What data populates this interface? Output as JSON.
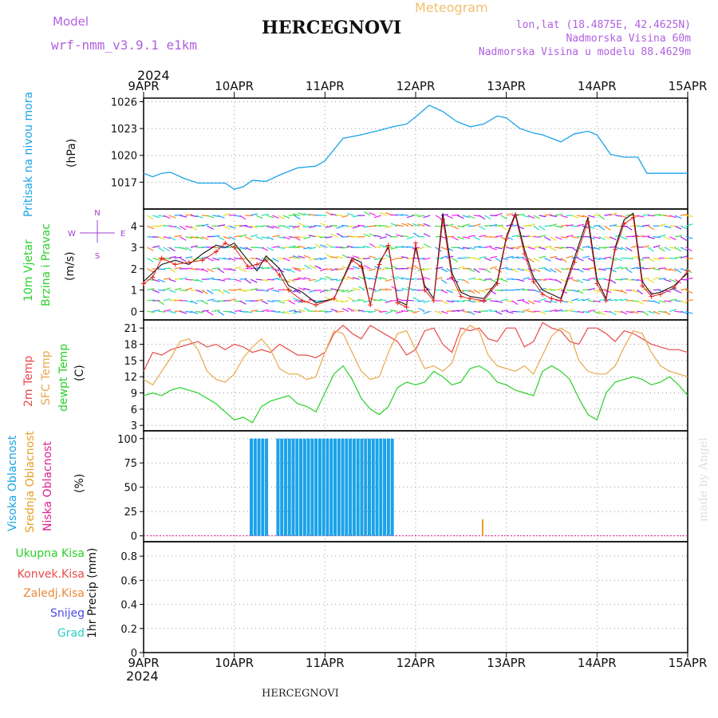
{
  "header": {
    "model_label": "Model",
    "model_name": "wrf-nmm_v3.9.1 e1km",
    "station": "HERCEGNOVI",
    "chart_kind": "Meteogram",
    "lonlat": "lon,lat (18.4875E, 42.4625N)",
    "altitude": "Nadmorska Visina 60m",
    "model_altitude": "Nadmorska Visina u modelu 88.4629m",
    "credit": "made by Angel",
    "footer_station": "HERCEGNOVI"
  },
  "colors": {
    "pressure": "#1aa3e8",
    "temp2m": "#e84a4a",
    "sfc": "#e8a84a",
    "dewpt": "#2ad02a",
    "wind_obs": "#e02020",
    "purple": "#a040d0",
    "cloud_high": "#1aa3e8",
    "cloud_mid": "#e8a020",
    "cloud_low": "#e02090",
    "grid": "#999999"
  },
  "chart_data": [
    {
      "type": "line",
      "panel": "pressure",
      "ylabel_lines": [
        "Pritisak na nivou mora",
        "(hPa)"
      ],
      "yticks": [
        1017,
        1020,
        1023,
        1026
      ],
      "ylim": [
        1014,
        1026.4
      ],
      "x_days": [
        0,
        0.1,
        0.2,
        0.3,
        0.45,
        0.6,
        0.75,
        0.9,
        1.0,
        1.1,
        1.2,
        1.35,
        1.5,
        1.7,
        1.9,
        2.0,
        2.2,
        2.4,
        2.6,
        2.75,
        2.9,
        3.0,
        3.15,
        3.3,
        3.45,
        3.6,
        3.75,
        3.9,
        4.0,
        4.15,
        4.3,
        4.4,
        4.5,
        4.6,
        4.75,
        4.9,
        5.0,
        5.15,
        5.3,
        5.45,
        5.55,
        5.7,
        5.85,
        6.0
      ],
      "values": [
        1018.0,
        1017.6,
        1018.0,
        1018.1,
        1017.4,
        1016.9,
        1016.9,
        1016.9,
        1016.2,
        1016.5,
        1017.2,
        1017.1,
        1017.8,
        1018.6,
        1018.8,
        1019.4,
        1021.9,
        1022.3,
        1022.8,
        1023.2,
        1023.5,
        1024.3,
        1025.6,
        1024.9,
        1023.8,
        1023.2,
        1023.5,
        1024.4,
        1024.2,
        1023.0,
        1022.5,
        1022.3,
        1021.9,
        1021.5,
        1022.4,
        1022.7,
        1022.3,
        1020.1,
        1019.8,
        1019.8,
        1018.0,
        1018.0,
        1018.0,
        1018.0
      ]
    },
    {
      "type": "line",
      "panel": "wind",
      "ylabel_lines": [
        "10m Vjetar",
        "Brzina i Pravac",
        "(m/s)"
      ],
      "compass": [
        "N",
        "W",
        "E",
        "S"
      ],
      "yticks": [
        0,
        1,
        2,
        3,
        4
      ],
      "ylim": [
        -0.4,
        4.8
      ],
      "x_days": [
        0,
        0.1,
        0.2,
        0.35,
        0.5,
        0.65,
        0.8,
        0.9,
        1.0,
        1.15,
        1.25,
        1.35,
        1.5,
        1.6,
        1.75,
        1.9,
        2.1,
        2.3,
        2.4,
        2.5,
        2.6,
        2.7,
        2.8,
        2.9,
        3.0,
        3.1,
        3.2,
        3.3,
        3.4,
        3.5,
        3.6,
        3.75,
        3.9,
        4.0,
        4.1,
        4.2,
        4.3,
        4.4,
        4.5,
        4.6,
        4.75,
        4.9,
        5.0,
        5.1,
        5.2,
        5.3,
        5.4,
        5.5,
        5.6,
        5.7,
        5.85,
        6.0
      ],
      "series": [
        {
          "values": [
            1.4,
            1.8,
            2.2,
            2.4,
            2.2,
            2.7,
            3.1,
            3.0,
            3.2,
            2.4,
            1.9,
            2.6,
            2.0,
            1.2,
            0.9,
            0.4,
            0.6,
            2.5,
            2.3,
            0.3,
            2.3,
            3.0,
            0.5,
            0.3,
            3.0,
            1.2,
            0.6,
            4.6,
            1.8,
            0.9,
            0.7,
            0.6,
            1.4,
            3.5,
            4.6,
            2.9,
            1.6,
            1.0,
            0.8,
            0.6,
            2.5,
            4.4,
            1.5,
            0.6,
            3.0,
            4.3,
            4.6,
            1.4,
            0.8,
            0.9,
            1.2,
            1.8
          ]
        },
        {
          "values": [
            1.3,
            1.6,
            2.5,
            2.2,
            2.3,
            2.4,
            2.8,
            3.2,
            3.0,
            2.1,
            2.2,
            2.4,
            1.7,
            1.0,
            0.5,
            0.3,
            0.6,
            2.4,
            2.1,
            0.3,
            2.2,
            3.1,
            0.4,
            0.2,
            3.2,
            1.0,
            0.5,
            4.3,
            1.6,
            0.7,
            0.6,
            0.5,
            1.3,
            3.4,
            4.5,
            2.7,
            1.4,
            0.8,
            0.6,
            0.5,
            2.3,
            4.2,
            1.3,
            0.5,
            2.9,
            4.1,
            4.4,
            1.2,
            0.7,
            0.8,
            1.1,
            1.9
          ]
        }
      ]
    },
    {
      "type": "line",
      "panel": "temperature",
      "ylabel_lines": [
        "2m Temp",
        "SFC Temp",
        "dewpt Temp",
        "(C)"
      ],
      "yticks": [
        3,
        6,
        9,
        12,
        15,
        18,
        21
      ],
      "ylim": [
        2,
        22.5
      ],
      "x_days": [
        0,
        0.1,
        0.2,
        0.3,
        0.4,
        0.5,
        0.6,
        0.7,
        0.8,
        0.9,
        1.0,
        1.1,
        1.2,
        1.3,
        1.4,
        1.5,
        1.6,
        1.7,
        1.8,
        1.9,
        2.0,
        2.1,
        2.2,
        2.3,
        2.4,
        2.5,
        2.6,
        2.7,
        2.8,
        2.9,
        3.0,
        3.1,
        3.2,
        3.3,
        3.4,
        3.5,
        3.6,
        3.7,
        3.8,
        3.9,
        4.0,
        4.1,
        4.2,
        4.3,
        4.4,
        4.5,
        4.6,
        4.7,
        4.8,
        4.9,
        5.0,
        5.1,
        5.2,
        5.3,
        5.4,
        5.5,
        5.6,
        5.7,
        5.8,
        5.9,
        6.0
      ],
      "series": [
        {
          "name": "2m Temp",
          "values": [
            13.0,
            16.5,
            16.0,
            17.0,
            17.5,
            18.0,
            18.5,
            17.5,
            18.0,
            17.0,
            18.0,
            17.5,
            16.5,
            17.0,
            16.5,
            18.0,
            17.0,
            16.0,
            16.0,
            15.5,
            16.5,
            20.0,
            21.5,
            20.0,
            19.0,
            21.5,
            20.5,
            19.5,
            18.5,
            16.0,
            17.0,
            20.5,
            21.0,
            18.0,
            16.5,
            21.0,
            20.5,
            21.0,
            19.0,
            18.5,
            21.0,
            21.0,
            17.5,
            18.5,
            22.0,
            21.0,
            20.5,
            18.5,
            18.0,
            21.0,
            21.0,
            20.0,
            18.5,
            20.5,
            20.0,
            19.0,
            18.0,
            17.5,
            17.0,
            17.0,
            16.5
          ]
        },
        {
          "name": "SFC Temp",
          "values": [
            11.5,
            10.5,
            13.0,
            15.5,
            18.5,
            19.0,
            17.0,
            13.0,
            11.5,
            11.0,
            12.5,
            15.5,
            17.5,
            19.0,
            17.0,
            13.5,
            12.5,
            12.5,
            11.5,
            12.0,
            16.5,
            20.5,
            20.0,
            16.5,
            13.0,
            11.5,
            12.0,
            16.5,
            20.0,
            20.5,
            17.0,
            13.5,
            14.0,
            13.0,
            14.5,
            19.5,
            21.5,
            20.5,
            16.0,
            14.0,
            13.5,
            13.0,
            14.0,
            12.5,
            16.0,
            19.5,
            21.0,
            20.0,
            15.0,
            13.0,
            12.5,
            12.5,
            14.0,
            17.5,
            20.5,
            20.0,
            16.5,
            14.0,
            13.0,
            12.5,
            12.0
          ]
        },
        {
          "name": "dewpt Temp",
          "values": [
            8.5,
            9.0,
            8.5,
            9.5,
            10.0,
            9.5,
            9.0,
            8.0,
            7.0,
            5.5,
            4.0,
            4.5,
            3.5,
            6.5,
            7.5,
            8.0,
            8.5,
            7.0,
            6.5,
            5.5,
            9.0,
            12.5,
            14.0,
            11.5,
            8.0,
            6.0,
            5.0,
            6.5,
            10.0,
            11.0,
            10.5,
            11.0,
            13.0,
            12.0,
            10.5,
            11.0,
            13.5,
            14.0,
            13.0,
            11.0,
            10.5,
            9.5,
            9.0,
            8.5,
            13.0,
            14.0,
            13.0,
            11.5,
            8.0,
            5.0,
            4.0,
            9.0,
            11.0,
            11.5,
            12.0,
            11.5,
            10.5,
            11.0,
            12.0,
            10.5,
            8.5
          ]
        }
      ]
    },
    {
      "type": "bar",
      "panel": "cloud",
      "ylabel_lines": [
        "Visoka Oblacnost",
        "Srednja Oblacnost",
        "Niska Oblacnost",
        "(%)"
      ],
      "yticks": [
        0,
        25,
        50,
        75,
        100
      ],
      "ylim": [
        -6,
        108
      ],
      "series": [
        {
          "name": "Visoka Oblacnost",
          "x_start": 1.17,
          "x_end": 2.73,
          "gaps": [
            [
              1.37,
              1.43
            ]
          ],
          "bar_step": 0.042,
          "values": 100
        },
        {
          "name": "Srednja Oblacnost",
          "x": [
            3.73
          ],
          "values": [
            17
          ]
        },
        {
          "name": "Niska Oblacnost",
          "x": [],
          "values": []
        }
      ]
    },
    {
      "type": "bar",
      "panel": "precip",
      "ylabel_lines": [
        "1hr Precip (mm)"
      ],
      "legend": [
        "Ukupna Kisa",
        "Konvek.Kisa",
        "Zaledj.Kisa",
        "Snijeg",
        "Grad"
      ],
      "legend_colors": [
        "#2ad02a",
        "#e84a4a",
        "#e88a3a",
        "#4a4ae8",
        "#2ad0c0"
      ],
      "yticks": [
        0,
        0.2,
        0.4,
        0.6,
        0.8
      ],
      "ylim": [
        0,
        0.92
      ],
      "values": []
    }
  ],
  "xaxis": {
    "year": "2024",
    "labels": [
      "9APR",
      "10APR",
      "11APR",
      "12APR",
      "13APR",
      "14APR",
      "15APR"
    ],
    "range_days": [
      0,
      6
    ]
  }
}
